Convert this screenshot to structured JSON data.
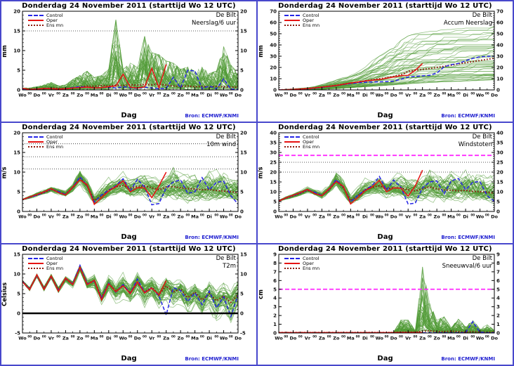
{
  "shared": {
    "title": "Donderdag 24 November  2011  (starttijd  Wo 12 UTC)",
    "station": "De Bilt",
    "xlabel": "Dag",
    "source_prefix": "Bron:",
    "source": "ECMWF/KNMI",
    "hour_sublabel": "00",
    "day_labels": [
      "Wo",
      "Do",
      "Vr",
      "Za",
      "Zo",
      "Ma",
      "Di",
      "Wo",
      "Do",
      "Vr",
      "Za",
      "Zo",
      "Ma",
      "Di",
      "Wo",
      "Do"
    ],
    "legend": [
      {
        "label": "Control",
        "color": "#2525e6",
        "style": "dashed"
      },
      {
        "label": "Oper",
        "color": "#e61212",
        "style": "solid"
      },
      {
        "label": "Ens mn",
        "color": "#8c1a0e",
        "style": "dotted"
      }
    ],
    "colors": {
      "ensemble": "#4e9a33",
      "control": "#2525e6",
      "oper": "#e61212",
      "ens_mean": "#8c1a0e",
      "threshold_magenta": "#ff2bff",
      "threshold_dotted": "#222222",
      "border_blue": "#4848cc",
      "source_text": "#1f1fd0"
    }
  },
  "chart_data": [
    {
      "type": "line",
      "param_label": "Neerslag/6 uur",
      "ylabel": "mm",
      "ymin": 0,
      "ymax": 20,
      "ytick_step": 5,
      "minor_step": 1,
      "x_unit": "days",
      "x_step": 0.5,
      "x_max": 15,
      "thresholds": {
        "dotted": [
          15
        ],
        "magenta": [],
        "zero_line": false
      },
      "ensemble": {
        "count": 50,
        "style": "spiky",
        "upper": [
          0.5,
          0.5,
          0.8,
          1.2,
          1.8,
          1.0,
          1.2,
          2.5,
          3.5,
          4.5,
          3.0,
          3.5,
          5.0,
          17.0,
          5.0,
          6.5,
          5.5,
          13.0,
          9.0,
          8.5,
          7.0,
          6.5,
          5.0,
          5.5,
          4.5,
          5.5,
          4.0,
          4.5,
          10.5,
          6.0,
          4.0
        ],
        "lower": [
          0,
          0,
          0,
          0,
          0,
          0,
          0,
          0,
          0,
          0,
          0,
          0,
          0,
          0,
          0,
          0,
          0,
          0,
          0,
          0,
          0,
          0,
          0,
          0,
          0,
          0,
          0,
          0,
          0,
          0,
          0
        ]
      },
      "series": {
        "ens_mean": [
          0.3,
          0.2,
          0.2,
          0.3,
          0.5,
          0.4,
          0.3,
          0.5,
          0.8,
          1.0,
          0.9,
          1.1,
          1.0,
          1.2,
          1.1,
          1.3,
          1.2,
          1.4,
          1.3,
          1.5,
          1.2,
          1.0,
          0.9,
          1.0,
          0.8,
          0.9,
          0.8,
          0.9,
          0.8,
          0.7,
          0.7
        ],
        "oper": [
          0.4,
          0.1,
          0.2,
          0.4,
          0.3,
          0.2,
          0.3,
          0.5,
          0.6,
          0.7,
          0.5,
          0.6,
          0.8,
          1.0,
          4.0,
          0.7,
          0.5,
          0.8,
          5.5,
          0.5,
          6.5
        ],
        "control": [
          0.3,
          0.1,
          0.2,
          0.4,
          0.3,
          0.2,
          0.3,
          0.6,
          0.8,
          0.7,
          0.5,
          0.6,
          0.7,
          0.5,
          0.8,
          0.6,
          0.4,
          0.7,
          0.5,
          0.3,
          0.4,
          3.2,
          0.5,
          5.0,
          4.8,
          0.3,
          1.0,
          0.3,
          2.8,
          0.2,
          0.1
        ]
      }
    },
    {
      "type": "line",
      "param_label": "Accum Neerslag",
      "ylabel": "mm",
      "ymin": 0,
      "ymax": 70,
      "ytick_step": 10,
      "minor_step": 2,
      "x_unit": "days",
      "x_step": 0.5,
      "x_max": 15,
      "thresholds": {
        "dotted": [],
        "magenta": [],
        "zero_line": false
      },
      "ensemble": {
        "count": 50,
        "style": "accum",
        "upper": [
          0,
          0.5,
          1,
          1.5,
          2,
          3,
          5,
          7,
          9,
          11,
          13,
          16,
          20,
          26,
          30,
          34,
          38,
          44,
          48,
          50,
          51,
          52,
          53,
          53.5,
          54,
          54.5,
          55,
          55.5,
          56,
          56.5,
          57
        ],
        "lower": [
          0,
          0,
          0,
          0.1,
          0.2,
          0.4,
          0.6,
          0.9,
          1.2,
          1.6,
          2,
          2.4,
          2.8,
          3.2,
          3.6,
          4,
          4.4,
          4.8,
          5.2,
          5.6,
          6,
          6.3,
          6.6,
          7,
          7.2,
          7.5,
          7.8,
          8,
          8.2,
          8.5,
          8.7
        ]
      },
      "series": {
        "ens_mean": [
          0,
          0.2,
          0.5,
          0.8,
          1.2,
          1.8,
          2.5,
          3.2,
          4.0,
          5.0,
          6.0,
          7.0,
          8.0,
          9.0,
          9.8,
          10.8,
          12.0,
          13.5,
          16.5,
          17.5,
          18.2,
          19.0,
          20.0,
          21.0,
          22.0,
          23.2,
          24.2,
          25.2,
          26.2,
          27.2,
          28.2
        ],
        "oper": [
          0,
          0.2,
          0.5,
          0.8,
          1.2,
          1.8,
          2.5,
          3.2,
          4.0,
          5.0,
          6.2,
          7.0,
          8.0,
          8.6,
          9.2,
          10.4,
          11.5,
          12.6,
          13.0,
          17.5,
          23.5
        ],
        "control": [
          0,
          0.2,
          0.4,
          0.7,
          1.0,
          1.6,
          2.2,
          3.0,
          3.8,
          4.8,
          5.6,
          6.4,
          6.8,
          7.0,
          7.2,
          7.4,
          7.8,
          9.5,
          11.5,
          12.0,
          12.5,
          13.0,
          15.0,
          20.5,
          22.5,
          23.5,
          26.0,
          28.0,
          29.5,
          29.8,
          30.0
        ]
      }
    },
    {
      "type": "line",
      "param_label": "10m wind",
      "ylabel": "m/s",
      "ymin": 0,
      "ymax": 20,
      "ytick_step": 5,
      "minor_step": 1,
      "x_unit": "days",
      "x_step": 0.5,
      "x_max": 15,
      "thresholds": {
        "dotted": [
          10.8,
          13.9,
          17.2
        ],
        "magenta": [],
        "zero_line": false
      },
      "ensemble": {
        "count": 50,
        "style": "smooth",
        "upper": [
          3.4,
          4.2,
          5.0,
          5.8,
          6.6,
          6.2,
          5.6,
          7.5,
          12.2,
          9.0,
          5.0,
          7.5,
          9.5,
          9.0,
          10.5,
          9.0,
          10.0,
          10.5,
          9.5,
          9.0,
          10.0,
          13.8,
          11.0,
          10.5,
          11.5,
          10.0,
          12.0,
          11.5,
          12.5,
          10.0,
          10.2
        ],
        "lower": [
          2.6,
          3.0,
          3.4,
          3.8,
          4.4,
          3.8,
          3.2,
          4.5,
          6.0,
          3.5,
          1.2,
          2.0,
          3.0,
          3.5,
          3.5,
          2.5,
          2.5,
          2.0,
          1.5,
          1.0,
          1.5,
          1.5,
          1.5,
          1.0,
          1.0,
          1.5,
          1.0,
          1.0,
          1.5,
          1.0,
          0.8
        ]
      },
      "series": {
        "ens_mean": [
          3.0,
          3.6,
          4.2,
          4.8,
          5.6,
          5.0,
          4.4,
          6.0,
          8.5,
          6.5,
          2.8,
          4.0,
          5.5,
          6.2,
          6.6,
          6.0,
          6.3,
          6.5,
          6.0,
          5.5,
          6.2,
          6.3,
          6.0,
          5.8,
          5.7,
          5.5,
          5.6,
          5.3,
          5.2,
          5.0,
          4.8
        ],
        "oper": [
          3.0,
          3.7,
          4.3,
          5.0,
          5.8,
          4.8,
          4.2,
          6.2,
          8.0,
          6.8,
          1.8,
          3.5,
          5.2,
          6.3,
          7.8,
          5.0,
          6.0,
          6.0,
          3.5,
          6.5,
          10.0
        ],
        "control": [
          3.0,
          3.6,
          4.1,
          4.9,
          5.7,
          5.1,
          4.3,
          6.1,
          8.8,
          6.6,
          2.4,
          4.2,
          5.4,
          6.5,
          8.3,
          5.2,
          8.2,
          6.2,
          1.7,
          2.0,
          6.0,
          7.5,
          8.0,
          4.6,
          5.0,
          8.6,
          5.5,
          7.4,
          7.7,
          4.0,
          1.9
        ]
      }
    },
    {
      "type": "line",
      "param_label": "Windstoten",
      "ylabel": "m/s",
      "ymin": 0,
      "ymax": 40,
      "ytick_step": 5,
      "minor_step": 1,
      "x_unit": "days",
      "x_step": 0.5,
      "x_max": 15,
      "thresholds": {
        "dotted": [
          20,
          25
        ],
        "magenta": [
          28.5
        ],
        "zero_line": false
      },
      "ensemble": {
        "count": 50,
        "style": "smooth",
        "upper": [
          6.5,
          8.2,
          9.8,
          11.2,
          13.0,
          12.0,
          10.8,
          14.5,
          24.5,
          17.5,
          10.0,
          14.5,
          19.0,
          17.5,
          20.5,
          17.5,
          20.0,
          22.0,
          19.0,
          18.5,
          20.5,
          28.5,
          22.0,
          21.5,
          24.0,
          20.5,
          24.5,
          23.5,
          31.5,
          21.0,
          21.5
        ],
        "lower": [
          4.5,
          5.5,
          6.5,
          7.5,
          8.8,
          7.2,
          6.0,
          8.5,
          11.5,
          6.5,
          2.5,
          4.0,
          6.0,
          7.0,
          7.0,
          5.0,
          5.0,
          4.5,
          3.5,
          2.5,
          3.5,
          3.5,
          3.5,
          2.5,
          2.5,
          3.5,
          2.5,
          2.5,
          3.5,
          2.5,
          2.0
        ]
      },
      "series": {
        "ens_mean": [
          5.5,
          6.8,
          8.0,
          9.2,
          10.8,
          9.5,
          8.2,
          11.0,
          15.8,
          12.0,
          5.5,
          8.0,
          11.0,
          12.2,
          13.0,
          11.5,
          12.0,
          12.0,
          11.0,
          10.5,
          11.5,
          12.5,
          11.5,
          11.0,
          10.8,
          10.5,
          10.8,
          10.2,
          10.0,
          9.8,
          9.2
        ],
        "oper": [
          5.2,
          7.0,
          8.3,
          9.6,
          11.2,
          9.0,
          8.0,
          11.5,
          15.2,
          12.8,
          3.8,
          7.0,
          10.5,
          12.5,
          15.8,
          10.0,
          12.0,
          11.8,
          7.8,
          13.0,
          21.0
        ],
        "control": [
          5.3,
          6.9,
          8.1,
          9.4,
          11.0,
          9.8,
          8.1,
          11.2,
          16.2,
          12.4,
          4.8,
          8.3,
          10.8,
          13.2,
          17.8,
          10.8,
          16.0,
          12.2,
          3.8,
          4.2,
          12.0,
          15.0,
          15.5,
          9.0,
          15.5,
          16.8,
          11.0,
          14.8,
          15.2,
          8.0,
          5.2
        ]
      }
    },
    {
      "type": "line",
      "param_label": "T2m",
      "ylabel": "Celsius",
      "ymin": -5,
      "ymax": 15,
      "ytick_step": 5,
      "minor_step": 1,
      "x_unit": "days",
      "x_step": 0.5,
      "x_max": 15,
      "thresholds": {
        "dotted": [],
        "magenta": [],
        "zero_line": true
      },
      "ensemble": {
        "count": 50,
        "style": "smooth",
        "upper": [
          8.8,
          7.0,
          10.4,
          7.2,
          10.2,
          7.0,
          9.6,
          8.4,
          12.8,
          9.0,
          10.4,
          6.5,
          10.8,
          8.5,
          11.8,
          8.5,
          11.5,
          8.5,
          11.0,
          8.0,
          10.5,
          9.0,
          10.0,
          7.5,
          9.5,
          7.0,
          10.0,
          7.0,
          9.5,
          7.0,
          10.3
        ],
        "lower": [
          7.6,
          5.2,
          8.8,
          5.2,
          8.4,
          4.8,
          7.6,
          6.2,
          10.2,
          5.5,
          5.5,
          1.5,
          4.5,
          2.0,
          3.5,
          0.5,
          3.0,
          0.0,
          2.0,
          -1.0,
          1.0,
          -1.5,
          0.5,
          -2.5,
          0.0,
          -3.5,
          -0.5,
          -4.0,
          -1.0,
          -4.5,
          -0.5
        ]
      },
      "series": {
        "ens_mean": [
          8.2,
          6.2,
          9.6,
          6.3,
          9.4,
          6.0,
          8.8,
          7.4,
          11.6,
          7.4,
          8.3,
          4.0,
          7.6,
          5.6,
          7.2,
          5.2,
          7.8,
          5.4,
          6.6,
          4.6,
          7.0,
          5.4,
          6.2,
          4.0,
          5.4,
          3.4,
          5.0,
          3.2,
          4.4,
          2.8,
          4.8
        ],
        "oper": [
          8.0,
          6.0,
          9.8,
          6.1,
          9.5,
          5.6,
          9.0,
          7.3,
          11.7,
          7.3,
          8.4,
          3.4,
          7.5,
          5.5,
          7.0,
          5.0,
          8.0,
          5.2,
          6.4,
          4.7,
          8.3
        ],
        "control": [
          8.1,
          6.1,
          9.7,
          6.2,
          9.3,
          5.9,
          8.9,
          7.5,
          12.2,
          7.5,
          8.2,
          3.8,
          7.7,
          5.4,
          7.3,
          5.1,
          8.7,
          5.3,
          6.5,
          4.4,
          -0.4,
          6.5,
          5.8,
          3.0,
          5.2,
          2.2,
          5.6,
          1.4,
          4.2,
          -0.8,
          4.6
        ]
      }
    },
    {
      "type": "line",
      "param_label": "Sneeuwval/6 uur",
      "ylabel": "cm",
      "ymin": 0,
      "ymax": 9,
      "ytick_step": 1,
      "minor_step": 0,
      "x_unit": "days",
      "x_step": 0.5,
      "x_max": 15,
      "thresholds": {
        "dotted": [],
        "magenta": [
          5
        ],
        "zero_line": false
      },
      "ensemble": {
        "count": 50,
        "style": "spiky",
        "upper": [
          0.05,
          0.05,
          0.05,
          0.05,
          0.05,
          0.05,
          0.05,
          0.05,
          0.05,
          0.05,
          0.05,
          0.05,
          0.05,
          0.05,
          0.05,
          0.05,
          0.1,
          1.4,
          1.4,
          0.3,
          7.2,
          3.2,
          1.4,
          1.75,
          0.6,
          1.5,
          0.7,
          1.35,
          0.5,
          0.9,
          0.3
        ],
        "lower": [
          0,
          0,
          0,
          0,
          0,
          0,
          0,
          0,
          0,
          0,
          0,
          0,
          0,
          0,
          0,
          0,
          0,
          0,
          0,
          0,
          0,
          0,
          0,
          0,
          0,
          0,
          0,
          0,
          0,
          0,
          0
        ]
      },
      "series": {
        "ens_mean": [
          0.05,
          0.05,
          0.05,
          0.05,
          0.05,
          0.05,
          0.05,
          0.05,
          0.05,
          0.05,
          0.05,
          0.05,
          0.05,
          0.05,
          0.05,
          0.05,
          0.05,
          0.1,
          0.1,
          0.1,
          0.2,
          0.25,
          0.15,
          0.15,
          0.2,
          0.15,
          0.1,
          0.15,
          0.1,
          0.1,
          0.1
        ],
        "oper": [
          0.05,
          0.05,
          0.05,
          0.05,
          0.05,
          0.05,
          0.05,
          0.05,
          0.05,
          0.05,
          0.05,
          0.05,
          0.05,
          0.05,
          0.05,
          0.05,
          0.05,
          0.05,
          0.05,
          0.05,
          0.05
        ],
        "control": [
          0.02,
          0.02,
          0.02,
          0.02,
          0.02,
          0.02,
          0.02,
          0.02,
          0.02,
          0.02,
          0.02,
          0.02,
          0.02,
          0.02,
          0.02,
          0.02,
          0.02,
          0.02,
          0.02,
          0.02,
          0.02,
          0.02,
          0.02,
          0.02,
          0.02,
          0.02,
          0.05,
          1.3,
          0.1,
          0.02,
          0.02
        ]
      }
    }
  ]
}
